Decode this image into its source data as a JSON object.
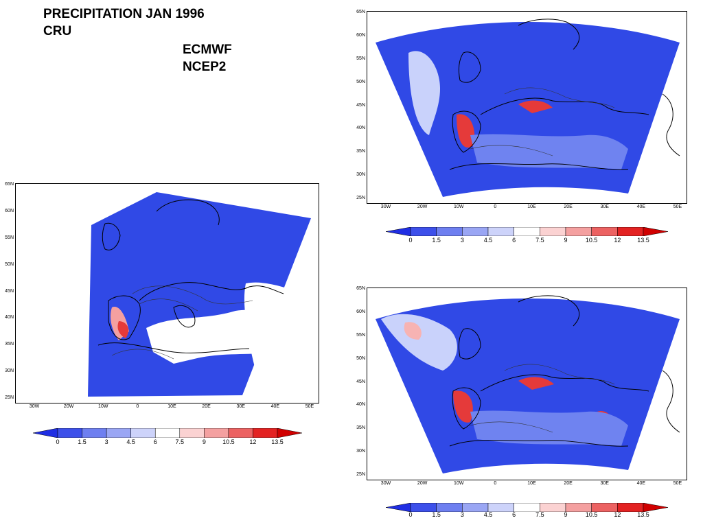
{
  "title": "PRECIPITATION JAN 1996",
  "labels": {
    "cru": "CRU",
    "ecmwf": "ECMWF",
    "ncep2": "NCEP2"
  },
  "lat_ticks": [
    "65N",
    "60N",
    "55N",
    "50N",
    "45N",
    "40N",
    "35N",
    "30N",
    "25N"
  ],
  "lon_ticks": [
    "30W",
    "20W",
    "10W",
    "0",
    "10E",
    "20E",
    "30E",
    "40E",
    "50E"
  ],
  "colorbar": {
    "labels": [
      "0",
      "1.5",
      "3",
      "4.5",
      "6",
      "7.5",
      "9",
      "10.5",
      "12",
      "13.5"
    ],
    "colors": [
      "#1f2ee3",
      "#3d50ea",
      "#6e7ff0",
      "#9aa6f4",
      "#cdd3fa",
      "#ffffff",
      "#fbd2d2",
      "#f4a0a0",
      "#ec6262",
      "#e32222",
      "#d00000"
    ]
  },
  "palette": {
    "deep": "#3049e6",
    "mid": "#6f83f0",
    "light": "#c9d2fb",
    "red": "#e53a3a",
    "pink": "#f7b3b3"
  }
}
